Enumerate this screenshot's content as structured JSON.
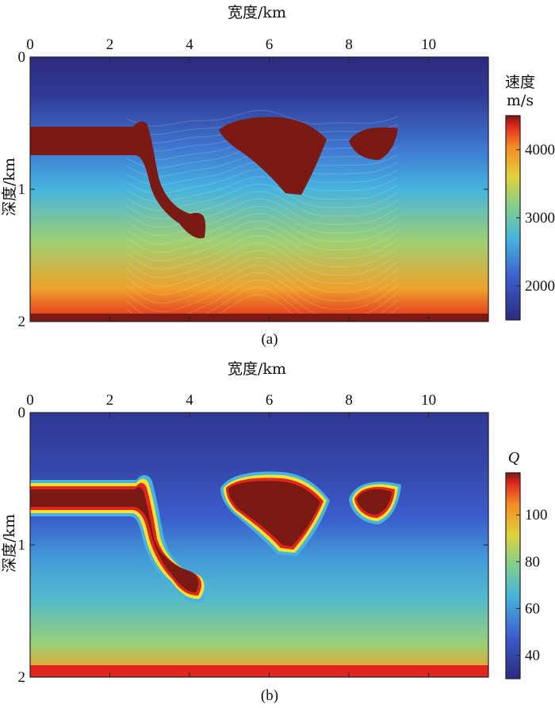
{
  "chart_data": [
    {
      "type": "heatmap",
      "panel_label": "(a)",
      "xlabel": "宽度/km",
      "ylabel": "深度/km",
      "x_ticks": [
        0,
        2,
        4,
        6,
        8,
        10
      ],
      "y_ticks": [
        0,
        1,
        2
      ],
      "xlim": [
        0,
        11.5
      ],
      "ylim": [
        0,
        2
      ],
      "colorbar": {
        "title_line1": "速度",
        "title_line2": "m/s",
        "ticks": [
          2000,
          3000,
          4000
        ],
        "range": [
          1500,
          4500
        ]
      },
      "salt_value": 4500,
      "background_profile": [
        [
          0,
          1500
        ],
        [
          0.3,
          1700
        ],
        [
          0.7,
          2300
        ],
        [
          1.0,
          2700
        ],
        [
          1.4,
          3300
        ],
        [
          1.75,
          3900
        ],
        [
          1.97,
          4300
        ]
      ],
      "colormap": "jet"
    },
    {
      "type": "heatmap",
      "panel_label": "(b)",
      "xlabel": "宽度/km",
      "ylabel": "深度/km",
      "x_ticks": [
        0,
        2,
        4,
        6,
        8,
        10
      ],
      "y_ticks": [
        0,
        1,
        2
      ],
      "xlim": [
        0,
        11.5
      ],
      "ylim": [
        0,
        2
      ],
      "colorbar": {
        "title": "Q",
        "ticks": [
          40,
          60,
          80,
          100
        ],
        "range": [
          30,
          118
        ]
      },
      "salt_value": 118,
      "background_profile": [
        [
          0,
          35
        ],
        [
          0.4,
          40
        ],
        [
          0.8,
          48
        ],
        [
          1.1,
          60
        ],
        [
          1.4,
          68
        ],
        [
          1.75,
          82
        ],
        [
          1.95,
          100
        ]
      ],
      "colormap": "jet"
    }
  ]
}
